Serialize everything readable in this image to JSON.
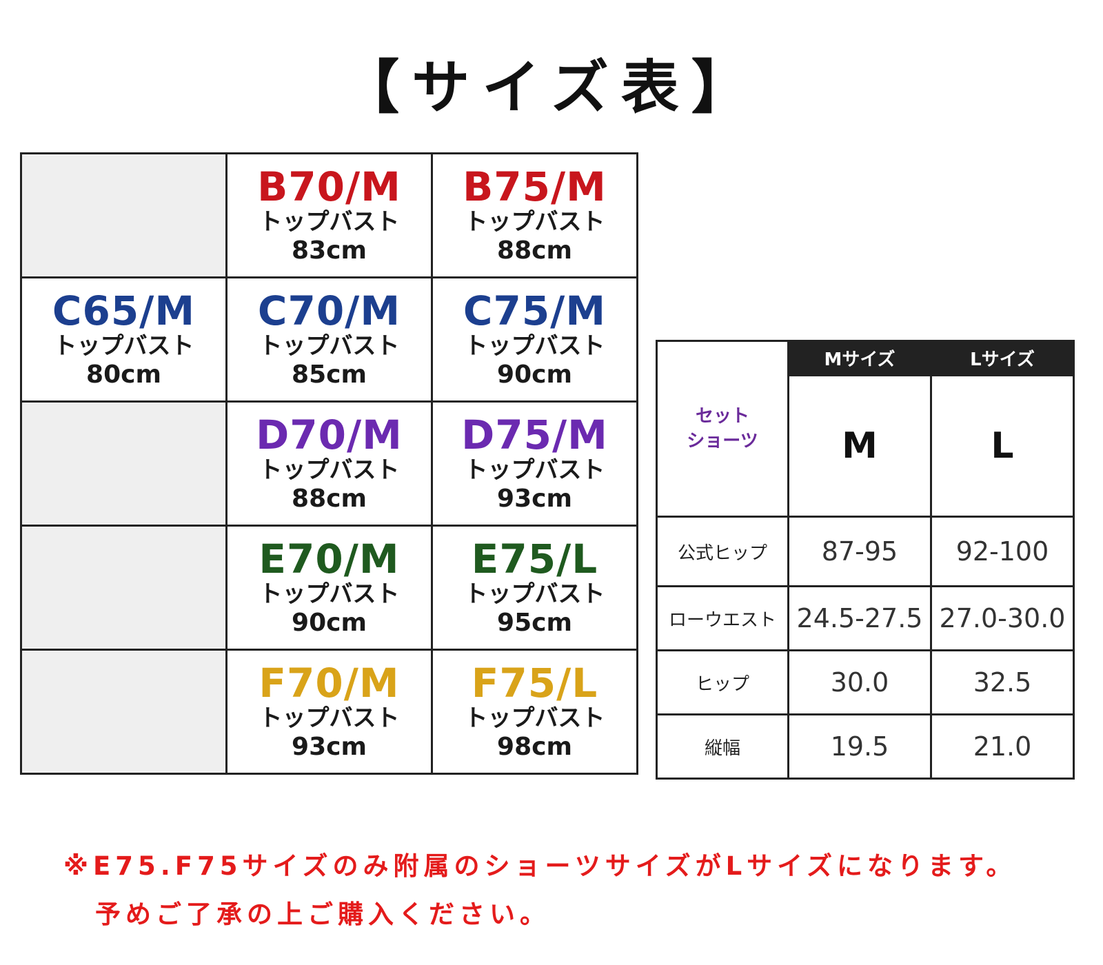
{
  "title": "【サイズ表】",
  "bra_grid": {
    "rows": [
      [
        null,
        {
          "code": "B70/M",
          "label": "トップバスト",
          "value": "83cm",
          "color": "#c8161d"
        },
        {
          "code": "B75/M",
          "label": "トップバスト",
          "value": "88cm",
          "color": "#c8161d"
        }
      ],
      [
        {
          "code": "C65/M",
          "label": "トップバスト",
          "value": "80cm",
          "color": "#1c3f8f"
        },
        {
          "code": "C70/M",
          "label": "トップバスト",
          "value": "85cm",
          "color": "#1c3f8f"
        },
        {
          "code": "C75/M",
          "label": "トップバスト",
          "value": "90cm",
          "color": "#1c3f8f"
        }
      ],
      [
        null,
        {
          "code": "D70/M",
          "label": "トップバスト",
          "value": "88cm",
          "color": "#6b2ab0"
        },
        {
          "code": "D75/M",
          "label": "トップバスト",
          "value": "93cm",
          "color": "#6b2ab0"
        }
      ],
      [
        null,
        {
          "code": "E70/M",
          "label": "トップバスト",
          "value": "90cm",
          "color": "#1f5a1f"
        },
        {
          "code": "E75/L",
          "label": "トップバスト",
          "value": "95cm",
          "color": "#1f5a1f"
        }
      ],
      [
        null,
        {
          "code": "F70/M",
          "label": "トップバスト",
          "value": "93cm",
          "color": "#d9a319"
        },
        {
          "code": "F75/L",
          "label": "トップバスト",
          "value": "98cm",
          "color": "#d9a319"
        }
      ]
    ]
  },
  "shorts_table": {
    "headers": [
      "Mサイズ",
      "Lサイズ"
    ],
    "set_label": "セット\nショーツ",
    "set_values": [
      "M",
      "L"
    ],
    "rows": [
      {
        "label": "公式ヒップ",
        "values": [
          "87-95",
          "92-100"
        ]
      },
      {
        "label": "ローウエスト",
        "values": [
          "24.5-27.5",
          "27.0-30.0"
        ]
      },
      {
        "label": "ヒップ",
        "values": [
          "30.0",
          "32.5"
        ]
      },
      {
        "label": "縦幅",
        "values": [
          "19.5",
          "21.0"
        ]
      }
    ]
  },
  "note": {
    "line1": "※E75.F75サイズのみ附属のショーツサイズがLサイズになります。",
    "line2": "予めご了承の上ご購入ください。"
  }
}
